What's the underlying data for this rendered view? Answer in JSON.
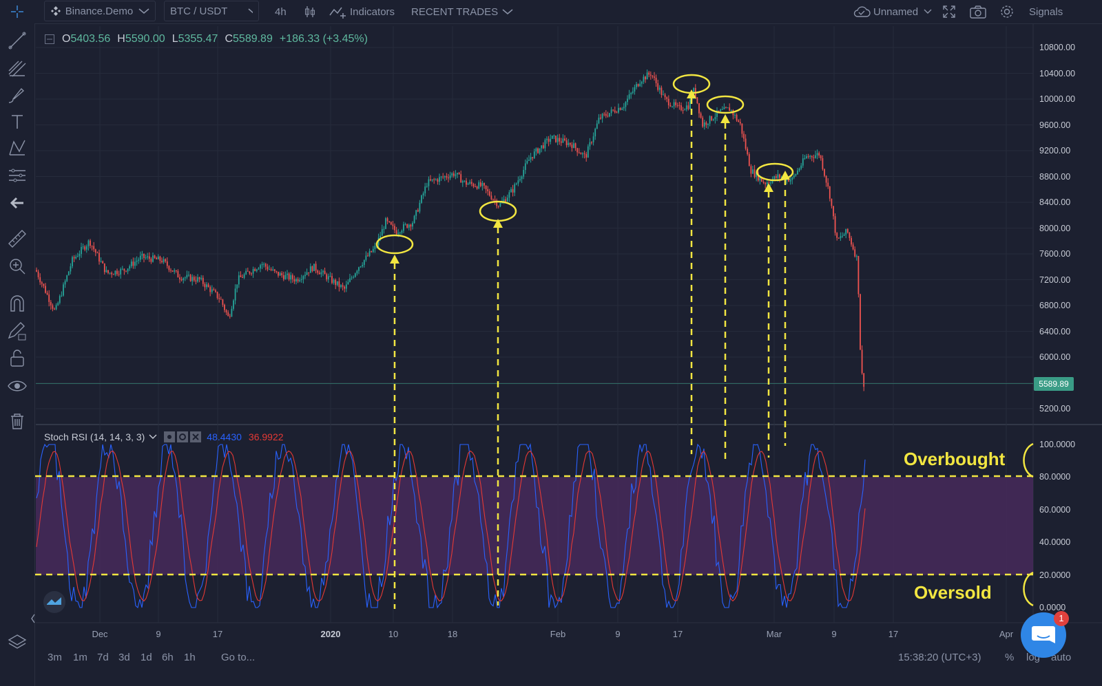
{
  "toolbar": {
    "exchange": "Binance.Demo",
    "symbol": "BTC / USDT",
    "interval": "4h",
    "indicators_label": "Indicators",
    "recent_trades_label": "RECENT TRADES",
    "layout_name": "Unnamed",
    "signals_label": "Signals"
  },
  "ohlc": {
    "o_label": "O",
    "o": "5403.56",
    "h_label": "H",
    "h": "5590.00",
    "l_label": "L",
    "l": "5355.47",
    "c_label": "C",
    "c": "5589.89",
    "change": "+186.33 (+3.45%)"
  },
  "price_axis": [
    "10800.00",
    "10400.00",
    "10000.00",
    "9600.00",
    "9200.00",
    "8800.00",
    "8400.00",
    "8000.00",
    "7600.00",
    "7200.00",
    "6800.00",
    "6400.00",
    "6000.00",
    "5200.00"
  ],
  "last_price_tag": "5589.89",
  "stoch_rsi": {
    "legend": "Stoch RSI (14, 14, 3, 3)",
    "k_value": "48.4430",
    "d_value": "36.9922",
    "k_color": "#2962ff",
    "d_color": "#e53935",
    "band_color": "#4a2a5e",
    "axis": [
      "100.0000",
      "80.0000",
      "60.0000",
      "40.0000",
      "20.0000",
      "0.0000"
    ]
  },
  "time_axis": [
    "Dec",
    "9",
    "17",
    "2020",
    "10",
    "18",
    "Feb",
    "9",
    "17",
    "Mar",
    "9",
    "17",
    "Apr"
  ],
  "annotations": {
    "overbought": "Overbought",
    "oversold": "Oversold",
    "color": "#f2e641"
  },
  "bottombar": {
    "ranges": [
      "3m",
      "1m",
      "7d",
      "3d",
      "1d",
      "6h",
      "1h"
    ],
    "goto": "Go to...",
    "clock": "15:38:20 (UTC+3)",
    "percent": "%",
    "log": "log",
    "auto": "auto"
  },
  "chat_badge": "1",
  "colors": {
    "background": "#1c2030",
    "up": "#26a69a",
    "down": "#ef5350",
    "grid": "#262b3b"
  },
  "icons": [
    "crosshair-icon",
    "trend-line-icon",
    "fib-icon",
    "brush-icon",
    "text-icon",
    "pattern-icon",
    "measure-levels-icon",
    "back-arrow-icon",
    "ruler-icon",
    "zoom-icon",
    "magnet-icon",
    "lock-draw-icon",
    "lock-icon",
    "eye-icon",
    "trash-icon",
    "layers-icon"
  ]
}
